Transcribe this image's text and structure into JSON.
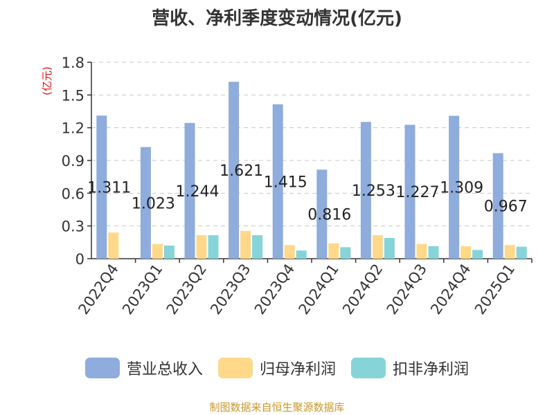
{
  "title": "营收、净利季度变动情况(亿元)",
  "source": "制图数据来自恒生聚源数据库",
  "colors": {
    "revenue": "#8eacdc",
    "net_profit": "#ffd88a",
    "deducted_profit": "#86d4d8",
    "unit_label": "#dd1111"
  },
  "chart_data": {
    "type": "bar",
    "title": "营收、净利季度变动情况(亿元)",
    "ylabel": "(亿元)",
    "xlabel": "",
    "ylim": [
      0,
      1.8
    ],
    "yticks": [
      "0",
      "0.3",
      "0.6",
      "0.9",
      "1.2",
      "1.5",
      "1.8"
    ],
    "grid": true,
    "legend": "bottom",
    "categories": [
      "2022Q4",
      "2023Q1",
      "2023Q2",
      "2023Q3",
      "2023Q4",
      "2024Q1",
      "2024Q2",
      "2024Q3",
      "2024Q4",
      "2025Q1"
    ],
    "series": [
      {
        "name": "营业总收入",
        "values": [
          1.311,
          1.023,
          1.244,
          1.621,
          1.415,
          0.816,
          1.253,
          1.227,
          1.309,
          0.967
        ]
      },
      {
        "name": "归母净利润",
        "values": [
          0.24,
          0.135,
          0.215,
          0.255,
          0.125,
          0.14,
          0.215,
          0.135,
          0.115,
          0.125
        ]
      },
      {
        "name": "扣非净利润",
        "values": [
          null,
          0.12,
          0.215,
          0.215,
          0.075,
          0.105,
          0.19,
          0.115,
          0.08,
          0.11
        ]
      }
    ],
    "data_labels": [
      "1.311",
      "1.023",
      "1.244",
      "1.621",
      "1.415",
      "0.816",
      "1.253",
      "1.227",
      "1.309",
      "0.967"
    ]
  }
}
